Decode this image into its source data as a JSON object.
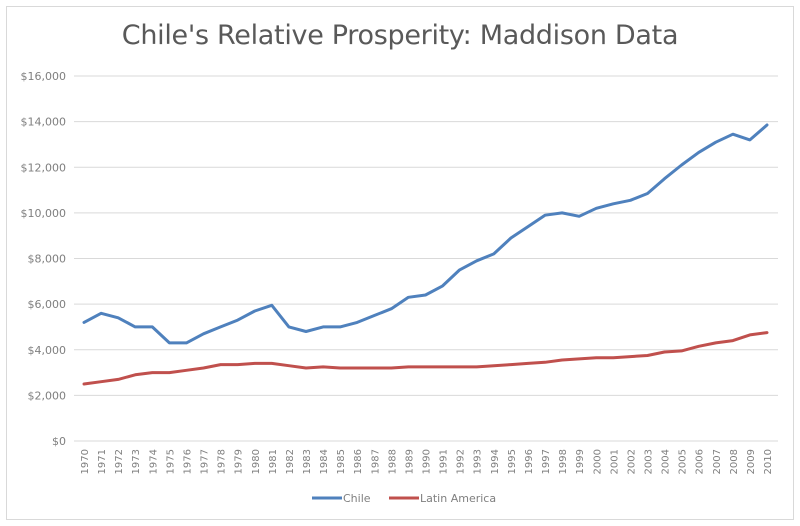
{
  "chart_data": {
    "type": "line",
    "title": "Chile's Relative Prosperity: Maddison Data",
    "xlabel": "",
    "ylabel": "",
    "ylim": [
      0,
      16000
    ],
    "yticks": [
      0,
      2000,
      4000,
      6000,
      8000,
      10000,
      12000,
      14000,
      16000
    ],
    "ytick_labels": [
      "$0",
      "$2,000",
      "$4,000",
      "$6,000",
      "$8,000",
      "$10,000",
      "$12,000",
      "$14,000",
      "$16,000"
    ],
    "grid": true,
    "legend_position": "bottom",
    "x": [
      "1970",
      "1971",
      "1972",
      "1973",
      "1974",
      "1975",
      "1976",
      "1977",
      "1978",
      "1979",
      "1980",
      "1981",
      "1982",
      "1983",
      "1984",
      "1985",
      "1986",
      "1987",
      "1988",
      "1989",
      "1990",
      "1991",
      "1992",
      "1993",
      "1994",
      "1995",
      "1996",
      "1997",
      "1998",
      "1999",
      "2000",
      "2001",
      "2002",
      "2003",
      "2004",
      "2005",
      "2006",
      "2007",
      "2008",
      "2009",
      "2010"
    ],
    "series": [
      {
        "name": "Chile",
        "color": "#4f81bd",
        "values": [
          5200,
          5600,
          5400,
          5000,
          5000,
          4300,
          4300,
          4700,
          5000,
          5300,
          5700,
          5950,
          5000,
          4800,
          5000,
          5000,
          5200,
          5500,
          5800,
          6300,
          6400,
          6800,
          7500,
          7900,
          8200,
          8900,
          9400,
          9900,
          10000,
          9850,
          10200,
          10400,
          10550,
          10850,
          11500,
          12100,
          12650,
          13100,
          13450,
          13200,
          13850
        ]
      },
      {
        "name": "Latin America",
        "color": "#c0504d",
        "values": [
          2500,
          2600,
          2700,
          2900,
          3000,
          3000,
          3100,
          3200,
          3350,
          3350,
          3400,
          3400,
          3300,
          3200,
          3250,
          3200,
          3200,
          3200,
          3200,
          3250,
          3250,
          3250,
          3250,
          3250,
          3300,
          3350,
          3400,
          3450,
          3550,
          3600,
          3650,
          3650,
          3700,
          3750,
          3900,
          3950,
          4150,
          4300,
          4400,
          4650,
          4750
        ]
      }
    ]
  }
}
